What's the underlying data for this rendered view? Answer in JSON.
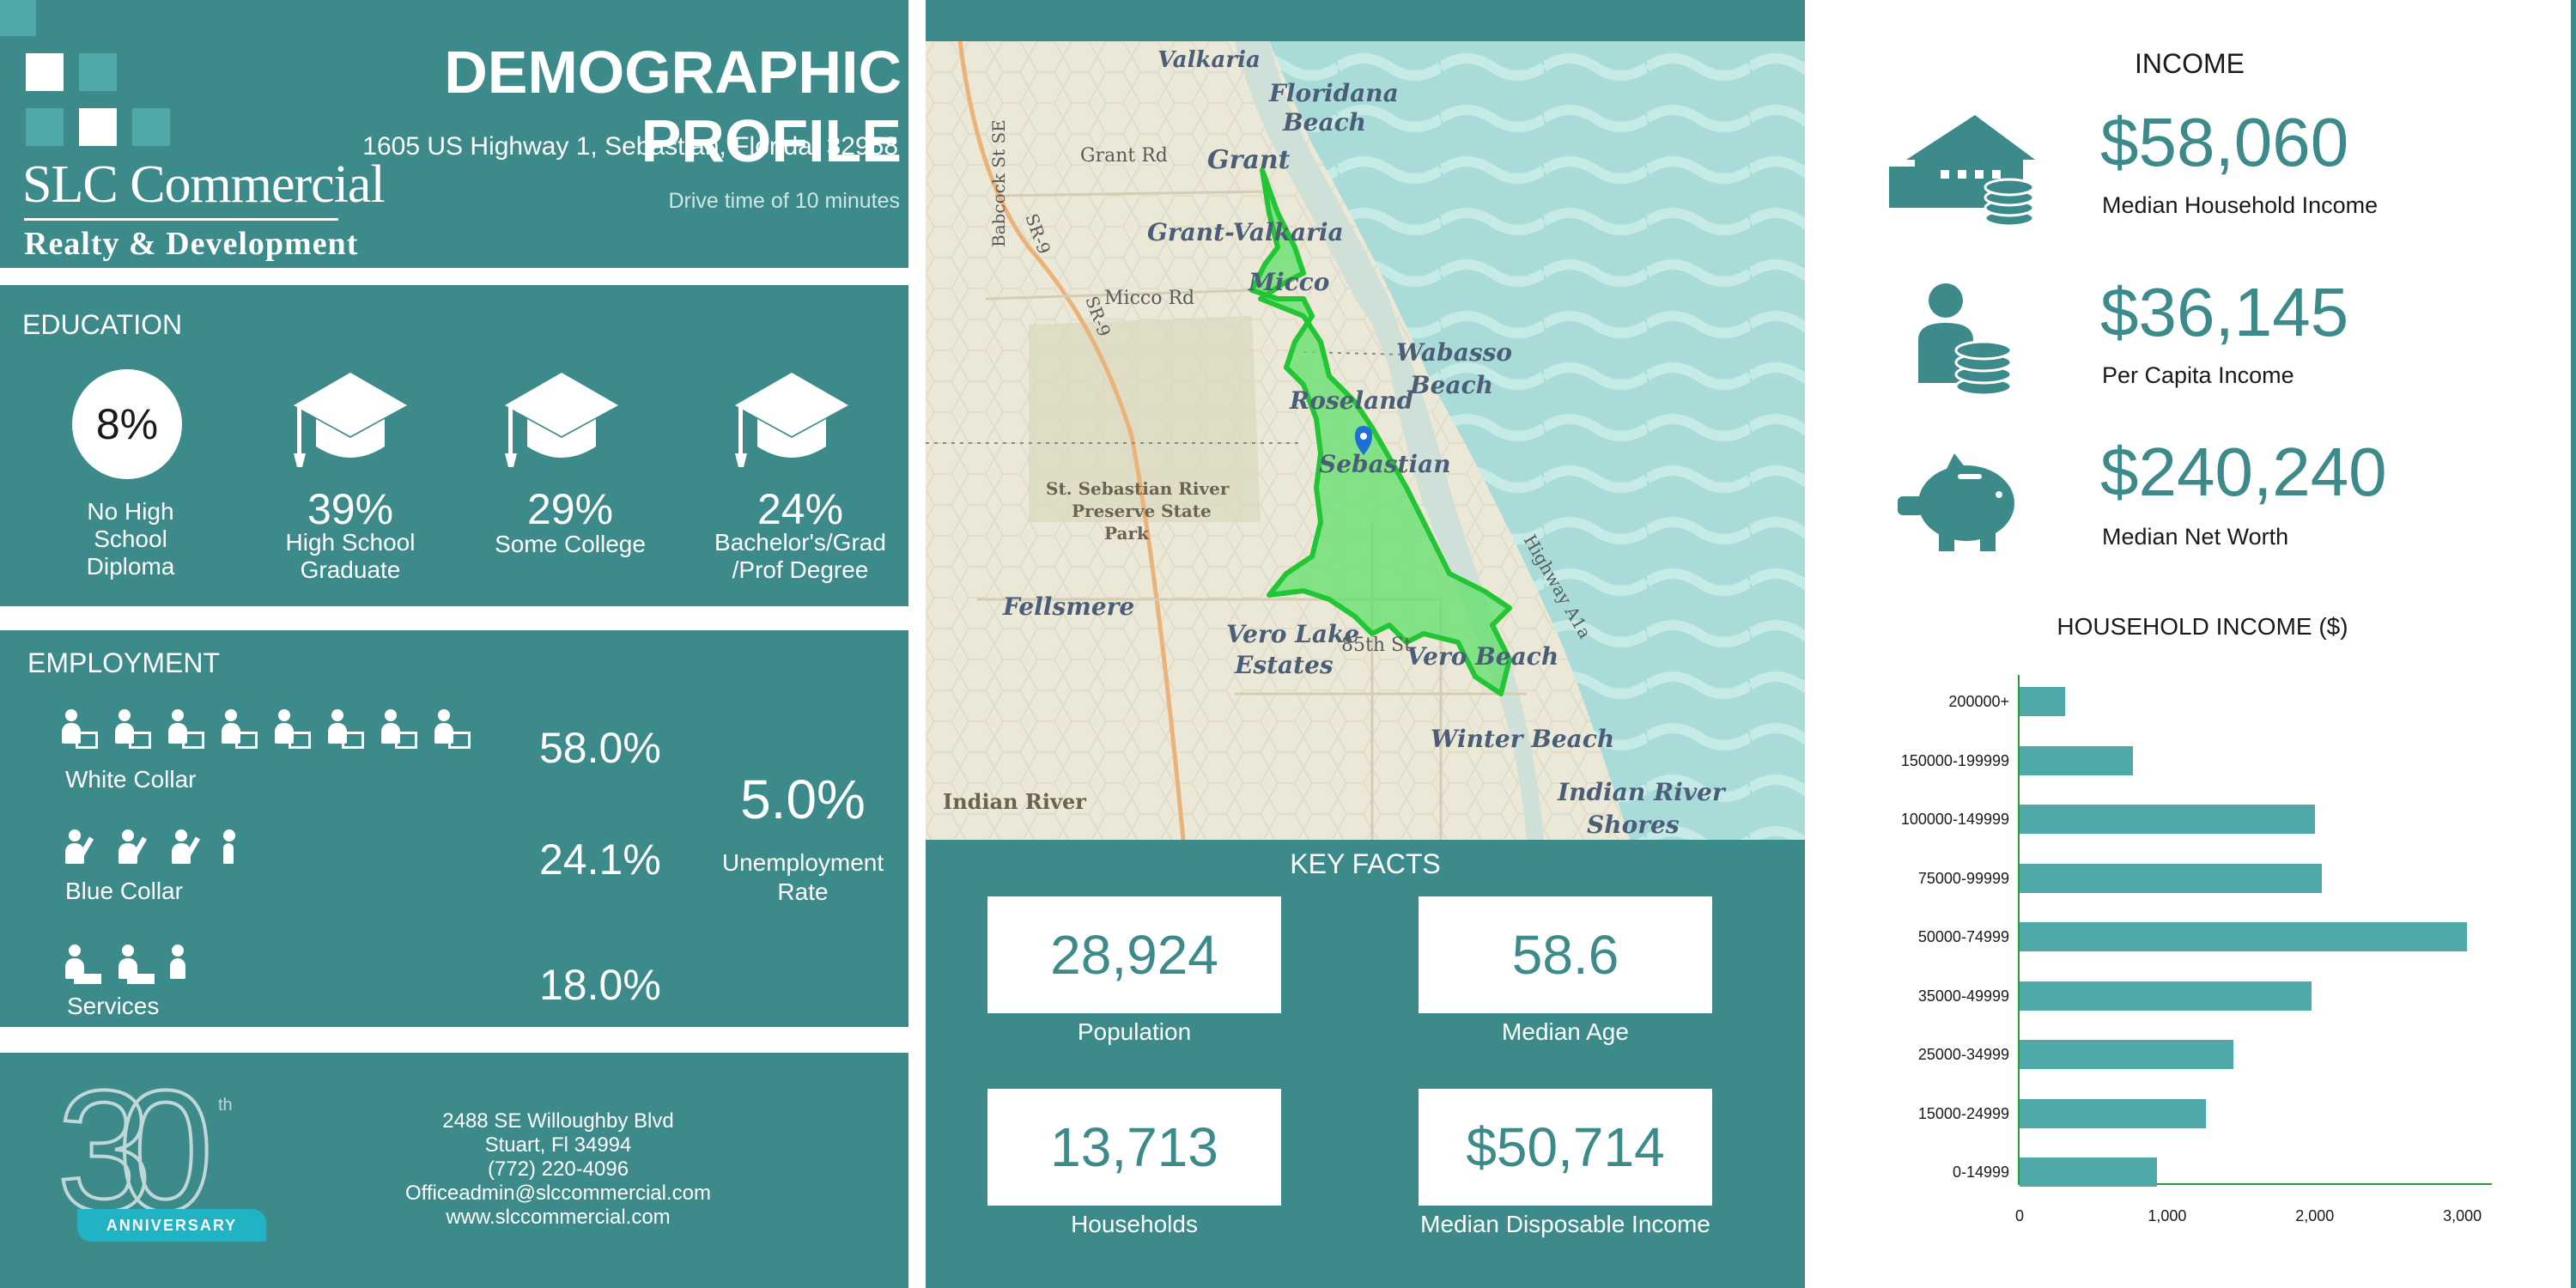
{
  "header": {
    "title": "DEMOGRAPHIC PROFILE",
    "address": "1605 US Highway 1, Sebastian, Florida, 32958",
    "drive_time": "Drive time of 10 minutes",
    "logo_main": "SLC Commercial",
    "logo_sub": "Realty & Development"
  },
  "education": {
    "title": "EDUCATION",
    "items": [
      {
        "pct": "8%",
        "label_lines": [
          "No High",
          "School",
          "Diploma"
        ]
      },
      {
        "pct": "39%",
        "label_lines": [
          "High School",
          "Graduate"
        ]
      },
      {
        "pct": "29%",
        "label_lines": [
          "Some College"
        ]
      },
      {
        "pct": "24%",
        "label_lines": [
          "Bachelor's/Grad",
          "/Prof Degree"
        ]
      }
    ]
  },
  "employment": {
    "title": "EMPLOYMENT",
    "rows": [
      {
        "label": "White Collar",
        "pct": "58.0%"
      },
      {
        "label": "Blue Collar",
        "pct": "24.1%"
      },
      {
        "label": "Services",
        "pct": "18.0%"
      }
    ],
    "unemployment_rate": "5.0%",
    "unemployment_label_lines": [
      "Unemployment",
      "Rate"
    ]
  },
  "footer": {
    "badge_number": "30",
    "badge_suffix": "th",
    "badge_ribbon": "ANNIVERSARY",
    "contact_lines": [
      "2488 SE Willoughby Blvd",
      "Stuart, Fl 34994",
      "(772) 220-4096",
      "Officeadmin@slccommercial.com",
      "www.slccommercial.com"
    ]
  },
  "map": {
    "places": [
      {
        "name": "Valkaria"
      },
      {
        "name": "Floridana"
      },
      {
        "name": "Beach"
      },
      {
        "name": "Grant Rd"
      },
      {
        "name": "Grant"
      },
      {
        "name": "Grant-Valkaria"
      },
      {
        "name": "Micco"
      },
      {
        "name": "Micco Rd"
      },
      {
        "name": "Wabasso"
      },
      {
        "name": "Beach"
      },
      {
        "name": "Roseland"
      },
      {
        "name": "Sebastian"
      },
      {
        "name": "St. Sebastian River"
      },
      {
        "name": "Preserve State"
      },
      {
        "name": "Park"
      },
      {
        "name": "Fellsmere"
      },
      {
        "name": "Vero Lake"
      },
      {
        "name": "Estates"
      },
      {
        "name": "85th St"
      },
      {
        "name": "Vero Beach"
      },
      {
        "name": "Winter Beach"
      },
      {
        "name": "Indian River"
      },
      {
        "name": "Indian River"
      },
      {
        "name": "Shores"
      },
      {
        "name": "Highway A1a"
      },
      {
        "name": "SR-9"
      },
      {
        "name": "SR-9"
      },
      {
        "name": "Babcock St SE"
      }
    ]
  },
  "key_facts": {
    "title": "KEY FACTS",
    "items": [
      {
        "value": "28,924",
        "label": "Population"
      },
      {
        "value": "58.6",
        "label": "Median Age"
      },
      {
        "value": "13,713",
        "label": "Households"
      },
      {
        "value": "$50,714",
        "label": "Median Disposable Income"
      }
    ]
  },
  "income": {
    "title": "INCOME",
    "items": [
      {
        "value": "$58,060",
        "label": "Median Household Income",
        "icon": "house-coins-icon"
      },
      {
        "value": "$36,145",
        "label": "Per Capita Income",
        "icon": "person-coins-icon"
      },
      {
        "value": "$240,240",
        "label": "Median Net Worth",
        "icon": "piggy-bank-icon"
      }
    ]
  },
  "chart_data": {
    "type": "bar",
    "orientation": "horizontal",
    "title": "HOUSEHOLD INCOME ($)",
    "categories": [
      "200000+",
      "150000-199999",
      "100000-149999",
      "75000-99999",
      "50000-74999",
      "35000-49999",
      "25000-34999",
      "15000-24999",
      "0-14999"
    ],
    "values": [
      310,
      770,
      2000,
      2050,
      3030,
      1980,
      1450,
      1260,
      930
    ],
    "xlim": [
      0,
      3200
    ],
    "xticks": [
      0,
      1000,
      2000,
      3000
    ],
    "xtick_labels": [
      "0",
      "1,000",
      "2,000",
      "3,000"
    ],
    "grid": false,
    "legend": "none",
    "bar_color": "#4fa9a8"
  },
  "colors": {
    "panel": "#3d8a8b",
    "accent": "#4fa9a8",
    "map_polygon": "#5fe06a",
    "water": "#a7dcd9",
    "land": "#ece8d8"
  }
}
